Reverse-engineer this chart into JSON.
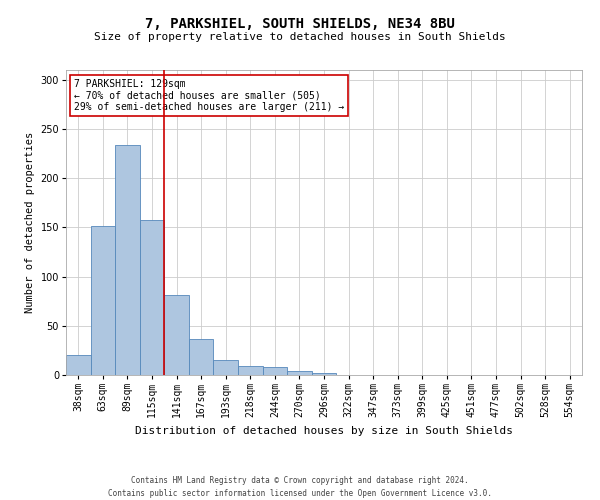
{
  "title": "7, PARKSHIEL, SOUTH SHIELDS, NE34 8BU",
  "subtitle": "Size of property relative to detached houses in South Shields",
  "xlabel": "Distribution of detached houses by size in South Shields",
  "ylabel": "Number of detached properties",
  "footer_line1": "Contains HM Land Registry data © Crown copyright and database right 2024.",
  "footer_line2": "Contains public sector information licensed under the Open Government Licence v3.0.",
  "categories": [
    "38sqm",
    "63sqm",
    "89sqm",
    "115sqm",
    "141sqm",
    "167sqm",
    "193sqm",
    "218sqm",
    "244sqm",
    "270sqm",
    "296sqm",
    "322sqm",
    "347sqm",
    "373sqm",
    "399sqm",
    "425sqm",
    "451sqm",
    "477sqm",
    "502sqm",
    "528sqm",
    "554sqm"
  ],
  "values": [
    20,
    151,
    234,
    158,
    81,
    37,
    15,
    9,
    8,
    4,
    2,
    0,
    0,
    0,
    0,
    0,
    0,
    0,
    0,
    0,
    0
  ],
  "bar_color": "#aec6e0",
  "bar_edge_color": "#5588bb",
  "vline_x": 3.5,
  "vline_color": "#cc0000",
  "annotation_text": "7 PARKSHIEL: 129sqm\n← 70% of detached houses are smaller (505)\n29% of semi-detached houses are larger (211) →",
  "annotation_box_color": "#ffffff",
  "annotation_box_edge": "#cc0000",
  "ylim": [
    0,
    310
  ],
  "yticks": [
    0,
    50,
    100,
    150,
    200,
    250,
    300
  ],
  "background_color": "#ffffff",
  "grid_color": "#cccccc",
  "title_fontsize": 10,
  "subtitle_fontsize": 8,
  "ylabel_fontsize": 7.5,
  "xlabel_fontsize": 8,
  "tick_fontsize": 7,
  "footer_fontsize": 5.5,
  "annot_fontsize": 7
}
